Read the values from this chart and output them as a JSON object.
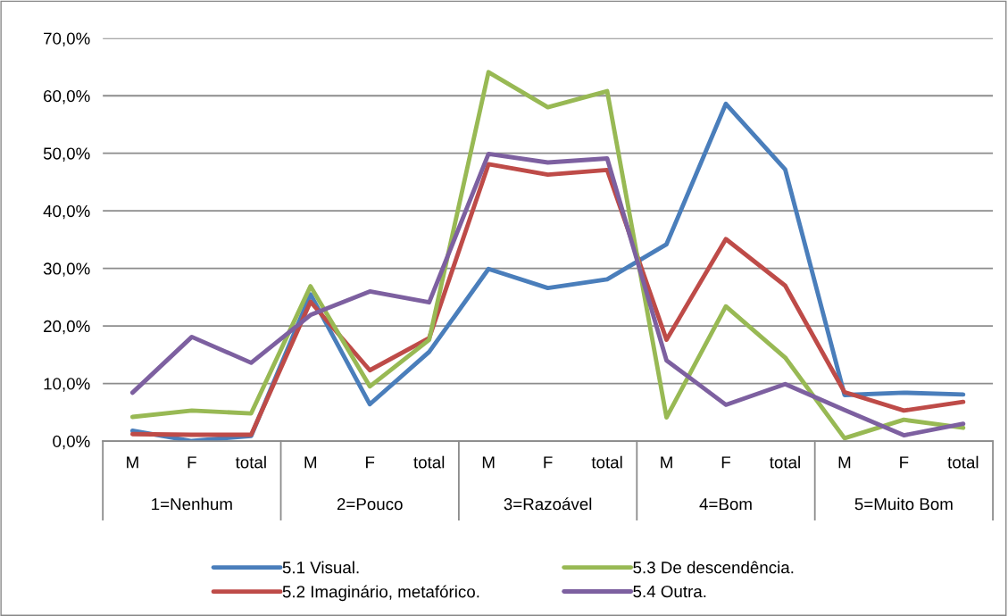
{
  "chart_data": {
    "type": "line",
    "categories": [
      "M",
      "F",
      "total",
      "M",
      "F",
      "total",
      "M",
      "F",
      "total",
      "M",
      "F",
      "total",
      "M",
      "F",
      "total"
    ],
    "annotations": [
      "1=Nenhum",
      "2=Pouco",
      "3=Razoável",
      "4=Bom",
      "5=Muito Bom"
    ],
    "series": [
      {
        "name": "5.1 Visual.",
        "color": "#4a7ebb",
        "values": [
          1.8,
          0.0,
          0.9,
          25.5,
          6.4,
          15.5,
          29.9,
          26.6,
          28.1,
          34.2,
          58.6,
          47.2,
          8.0,
          8.4,
          8.1
        ]
      },
      {
        "name": "5.2 Imaginário, metafórico.",
        "color": "#be4b48",
        "values": [
          1.2,
          1.1,
          1.1,
          24.2,
          12.3,
          17.9,
          48.1,
          46.3,
          47.1,
          17.6,
          35.1,
          27.0,
          8.5,
          5.3,
          6.8
        ]
      },
      {
        "name": "5.3 De descendência.",
        "color": "#98b954",
        "values": [
          4.2,
          5.3,
          4.8,
          26.9,
          9.5,
          17.6,
          64.1,
          58.0,
          60.8,
          4.1,
          23.4,
          14.5,
          0.5,
          3.7,
          2.3
        ]
      },
      {
        "name": "5.4 Outra.",
        "color": "#7d60a0",
        "values": [
          8.4,
          18.1,
          13.6,
          21.9,
          26.0,
          24.1,
          49.9,
          48.4,
          49.1,
          14.0,
          6.3,
          9.9,
          5.4,
          1.0,
          3.0
        ]
      }
    ],
    "ylim": [
      0,
      70
    ],
    "yticks": [
      {
        "value": 0,
        "label": "0,0%"
      },
      {
        "value": 10,
        "label": "10,0%"
      },
      {
        "value": 20,
        "label": "20,0%"
      },
      {
        "value": 30,
        "label": "30,0%"
      },
      {
        "value": 40,
        "label": "40,0%"
      },
      {
        "value": 50,
        "label": "50,0%"
      },
      {
        "value": 60,
        "label": "60,0%"
      },
      {
        "value": 70,
        "label": "70,0%"
      }
    ],
    "grid": "y",
    "legend": "bottom",
    "marker": "none",
    "line_style": "solid"
  }
}
